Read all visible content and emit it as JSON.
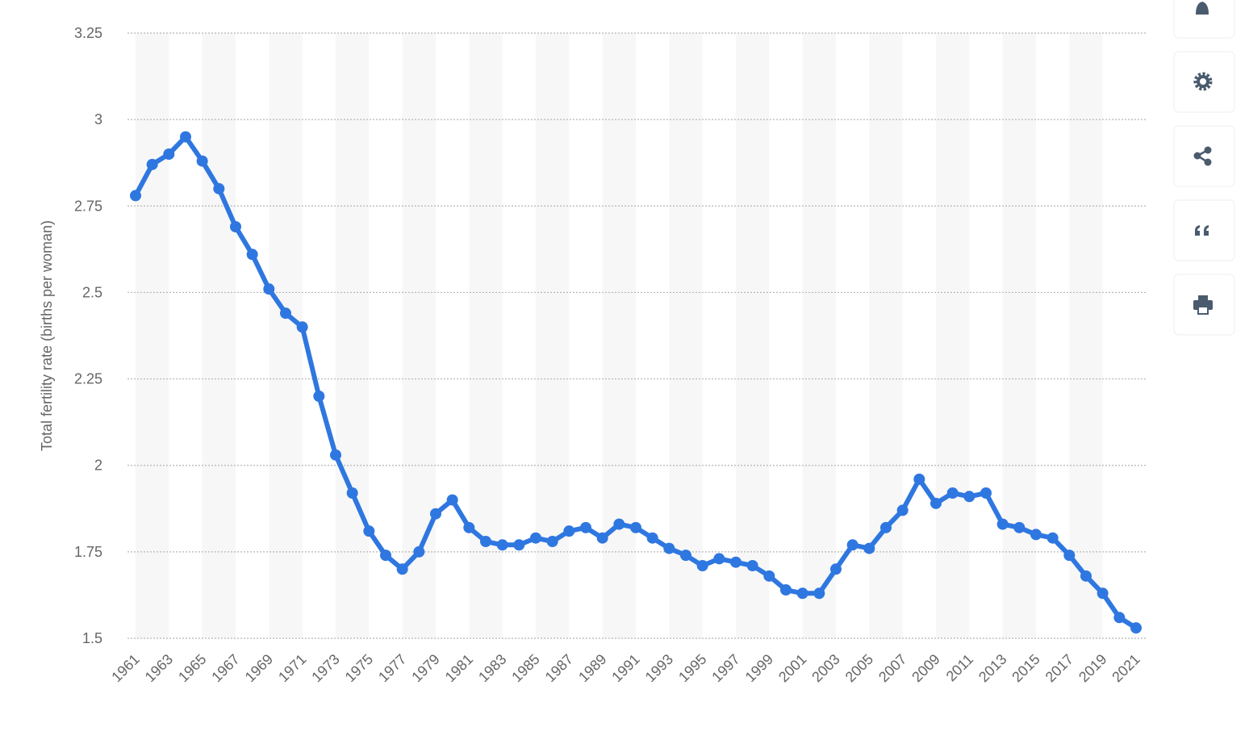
{
  "chart_data": {
    "type": "line",
    "y_axis_label": "Total fertility rate (births per woman)",
    "categories": [
      "1961",
      null,
      "1963",
      null,
      "1965",
      null,
      "1967",
      null,
      "1969",
      null,
      "1971",
      null,
      "1973",
      null,
      "1975",
      null,
      "1977",
      null,
      "1979",
      null,
      "1981",
      null,
      "1983",
      null,
      "1985",
      null,
      "1987",
      null,
      "1989",
      null,
      "1991",
      null,
      "1993",
      null,
      "1995",
      null,
      "1997",
      null,
      "1999",
      null,
      "2001",
      null,
      "2003",
      null,
      "2005",
      null,
      "2007",
      null,
      "2009",
      null,
      "2011",
      null,
      "2013",
      null,
      "2015",
      null,
      "2017",
      null,
      "2019",
      null,
      "2021"
    ],
    "values": [
      2.78,
      2.87,
      2.9,
      2.95,
      2.88,
      2.8,
      2.69,
      2.61,
      2.51,
      2.44,
      2.4,
      2.2,
      2.03,
      1.92,
      1.81,
      1.74,
      1.7,
      1.75,
      1.86,
      1.9,
      1.82,
      1.78,
      1.77,
      1.77,
      1.79,
      1.78,
      1.81,
      1.82,
      1.79,
      1.83,
      1.82,
      1.79,
      1.76,
      1.74,
      1.71,
      1.73,
      1.72,
      1.71,
      1.68,
      1.64,
      1.63,
      1.63,
      1.7,
      1.77,
      1.76,
      1.82,
      1.87,
      1.96,
      1.89,
      1.92,
      1.91,
      1.92,
      1.83,
      1.82,
      1.8,
      1.79,
      1.74,
      1.68,
      1.63,
      1.56,
      1.53
    ],
    "color": "#2f77e0",
    "ylim": [
      1.5,
      3.25
    ],
    "yticks": [
      1.5,
      1.75,
      2,
      2.25,
      2.5,
      2.75,
      3,
      3.25
    ],
    "grid": true
  }
}
